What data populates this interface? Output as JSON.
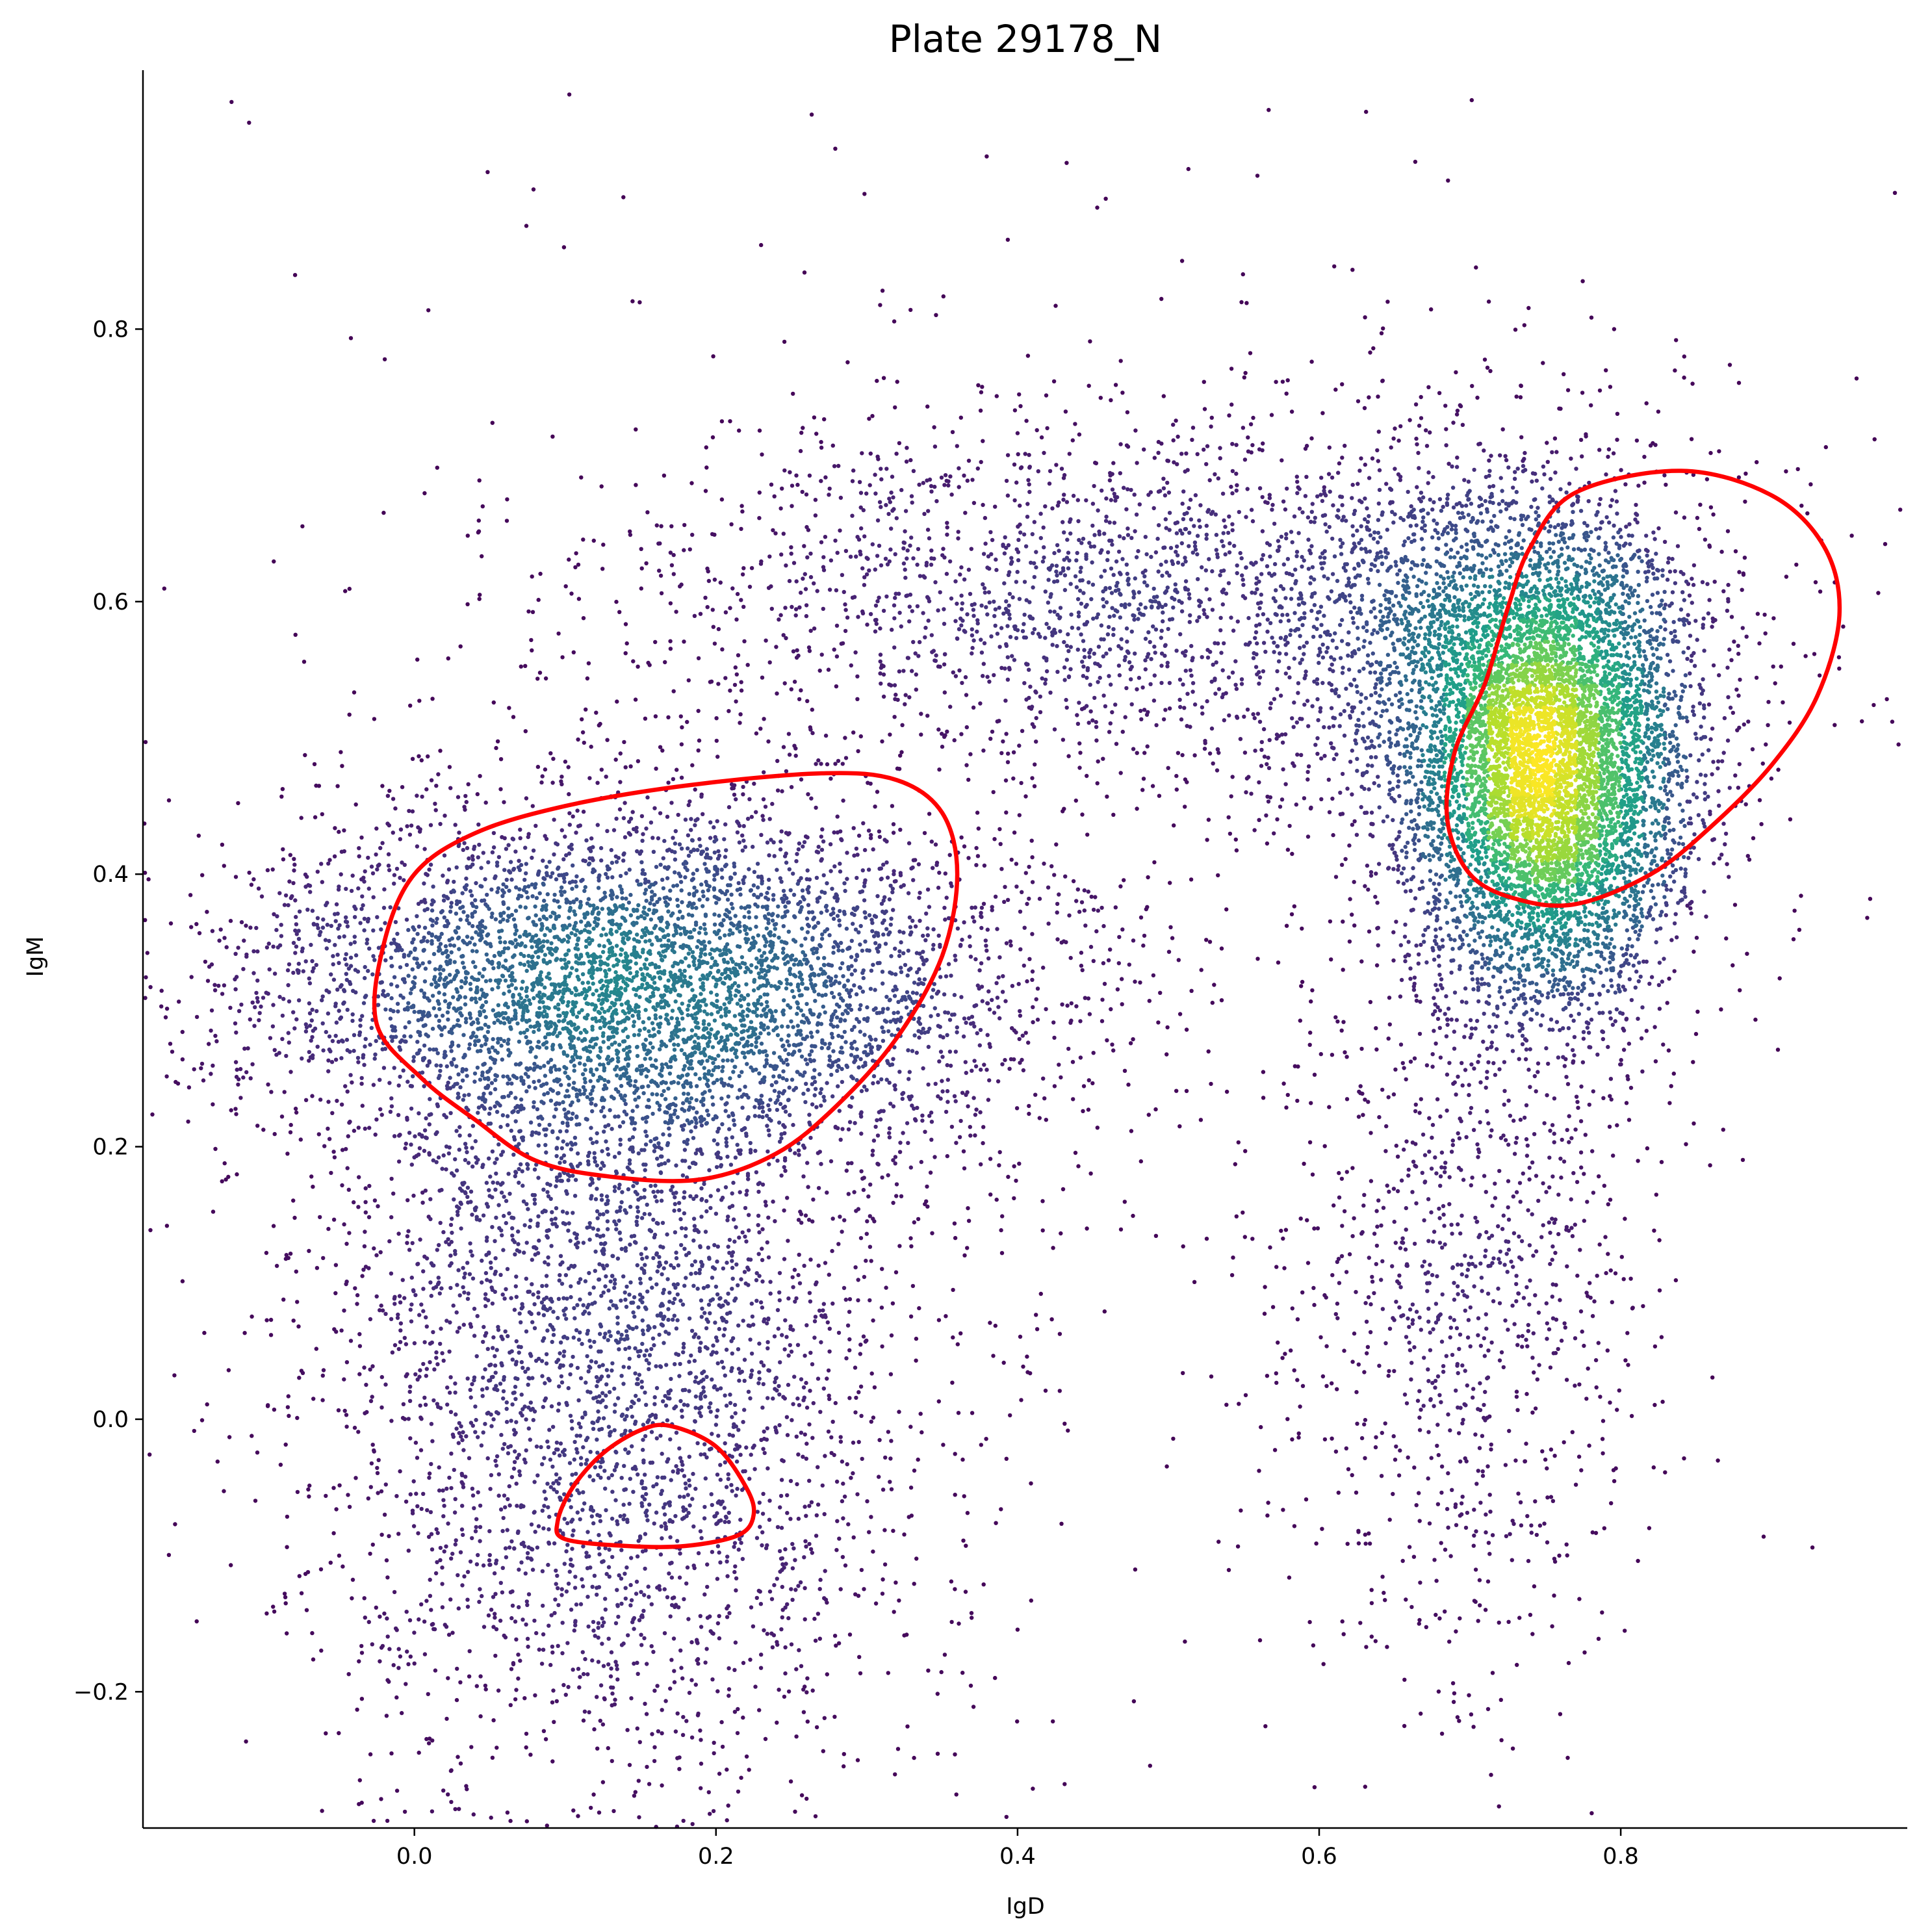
{
  "chart_data": {
    "type": "scatter",
    "title": "Plate 29178_N",
    "xlabel": "IgD",
    "ylabel": "IgM",
    "xlim": [
      -0.18,
      0.99
    ],
    "ylim": [
      -0.3,
      0.99
    ],
    "x_ticks": [
      0.0,
      0.2,
      0.4,
      0.6,
      0.8
    ],
    "x_tick_labels": [
      "0.0",
      "0.2",
      "0.4",
      "0.6",
      "0.8"
    ],
    "y_ticks": [
      -0.2,
      0.0,
      0.2,
      0.4,
      0.6,
      0.8
    ],
    "y_tick_labels": [
      "−0.2",
      "0.0",
      "0.2",
      "0.4",
      "0.6",
      "0.8"
    ],
    "grid": false,
    "colormap": "viridis (point density)",
    "point_color_low": "#440154",
    "point_color_high": "#fde725",
    "gate_color": "#ff0000",
    "point_count_approx": 20000,
    "populations": [
      {
        "center": [
          0.75,
          0.47
        ],
        "spread": [
          0.045,
          0.085
        ],
        "share": 0.3
      },
      {
        "center": [
          0.72,
          0.55
        ],
        "spread": [
          0.07,
          0.08
        ],
        "share": 0.08
      },
      {
        "center": [
          0.15,
          0.32
        ],
        "spread": [
          0.13,
          0.065
        ],
        "share": 0.24
      },
      {
        "center": [
          0.13,
          0.04
        ],
        "spread": [
          0.1,
          0.16
        ],
        "share": 0.18
      },
      {
        "center": [
          0.5,
          0.6
        ],
        "spread": [
          0.18,
          0.07
        ],
        "share": 0.12
      },
      {
        "center": [
          0.7,
          0.1
        ],
        "spread": [
          0.06,
          0.15
        ],
        "share": 0.05
      },
      {
        "center": [
          0.4,
          0.35
        ],
        "spread": [
          0.3,
          0.35
        ],
        "share": 0.03
      }
    ],
    "gates": [
      {
        "name": "",
        "polygon": [
          [
            0.27,
            0.474
          ],
          [
            0.32,
            0.469
          ],
          [
            0.35,
            0.445
          ],
          [
            0.36,
            0.4
          ],
          [
            0.35,
            0.34
          ],
          [
            0.32,
            0.28
          ],
          [
            0.28,
            0.23
          ],
          [
            0.24,
            0.195
          ],
          [
            0.19,
            0.176
          ],
          [
            0.13,
            0.178
          ],
          [
            0.08,
            0.19
          ],
          [
            0.04,
            0.22
          ],
          [
            0.005,
            0.25
          ],
          [
            -0.025,
            0.29
          ],
          [
            -0.02,
            0.35
          ],
          [
            0.0,
            0.4
          ],
          [
            0.04,
            0.43
          ],
          [
            0.1,
            0.45
          ],
          [
            0.18,
            0.465
          ]
        ]
      },
      {
        "name": "",
        "polygon": [
          [
            0.17,
            -0.005
          ],
          [
            0.2,
            -0.02
          ],
          [
            0.22,
            -0.05
          ],
          [
            0.225,
            -0.07
          ],
          [
            0.215,
            -0.085
          ],
          [
            0.18,
            -0.093
          ],
          [
            0.14,
            -0.093
          ],
          [
            0.1,
            -0.088
          ],
          [
            0.095,
            -0.075
          ],
          [
            0.105,
            -0.05
          ],
          [
            0.125,
            -0.025
          ],
          [
            0.15,
            -0.008
          ]
        ]
      },
      {
        "name": "",
        "polygon": [
          [
            0.84,
            0.696
          ],
          [
            0.9,
            0.678
          ],
          [
            0.935,
            0.64
          ],
          [
            0.945,
            0.59
          ],
          [
            0.93,
            0.53
          ],
          [
            0.9,
            0.48
          ],
          [
            0.86,
            0.435
          ],
          [
            0.82,
            0.4
          ],
          [
            0.77,
            0.378
          ],
          [
            0.73,
            0.382
          ],
          [
            0.7,
            0.4
          ],
          [
            0.685,
            0.44
          ],
          [
            0.69,
            0.49
          ],
          [
            0.71,
            0.54
          ],
          [
            0.725,
            0.595
          ],
          [
            0.74,
            0.64
          ],
          [
            0.77,
            0.68
          ]
        ]
      }
    ]
  }
}
